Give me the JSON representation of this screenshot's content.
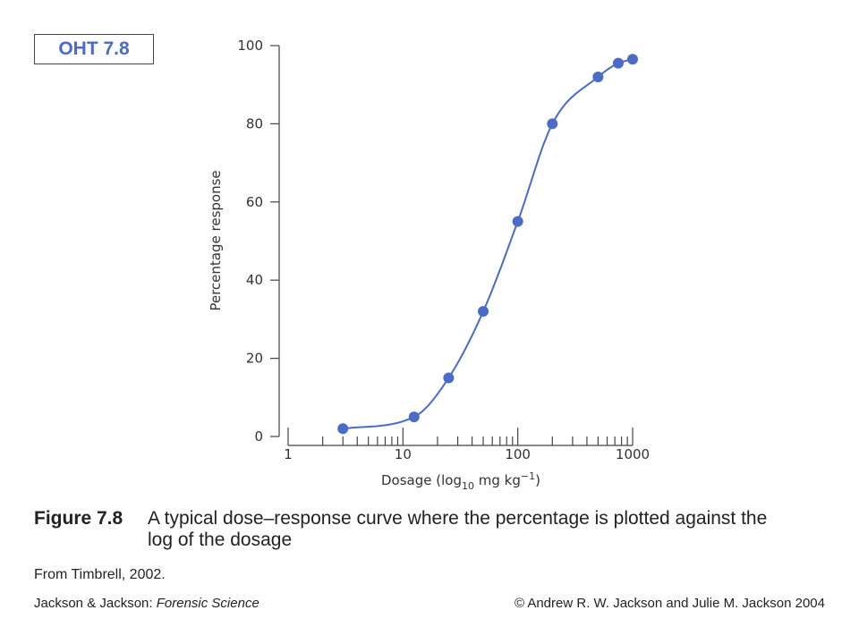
{
  "badge": {
    "label": "OHT 7.8"
  },
  "chart_data": {
    "type": "scatter",
    "x_scale": "log",
    "x": [
      3,
      12.5,
      25,
      50,
      100,
      200,
      500,
      750,
      1000
    ],
    "y": [
      2,
      5,
      15,
      32,
      55,
      80,
      92,
      95.5,
      96.5
    ],
    "fit_curve": true,
    "xlabel": "Dosage (log",
    "xlabel_sub": "10",
    "xlabel_unit": " mg kg",
    "xlabel_sup": "−1",
    "xlabel_close": ")",
    "ylabel": "Percentage response",
    "xlim": [
      1,
      1000
    ],
    "ylim": [
      0,
      100
    ],
    "x_tick_labels": [
      {
        "value": 1,
        "label": "1"
      },
      {
        "value": 10,
        "label": "10"
      },
      {
        "value": 100,
        "label": "100"
      },
      {
        "value": 1000,
        "label": "1000"
      }
    ],
    "y_tick_labels": [
      {
        "value": 0,
        "label": "0"
      },
      {
        "value": 20,
        "label": "20"
      },
      {
        "value": 40,
        "label": "40"
      },
      {
        "value": 60,
        "label": "60"
      },
      {
        "value": 80,
        "label": "80"
      },
      {
        "value": 100,
        "label": "100"
      }
    ],
    "grid": false,
    "color": "#4a6cc8"
  },
  "caption": {
    "label": "Figure 7.8",
    "text": "A typical dose–response curve where the percentage is plotted against the log of the dosage"
  },
  "source": "From Timbrell, 2002.",
  "footer": {
    "left_authors": "Jackson & Jackson: ",
    "left_title": "Forensic Science",
    "right": "© Andrew R. W. Jackson and Julie M. Jackson 2004"
  }
}
